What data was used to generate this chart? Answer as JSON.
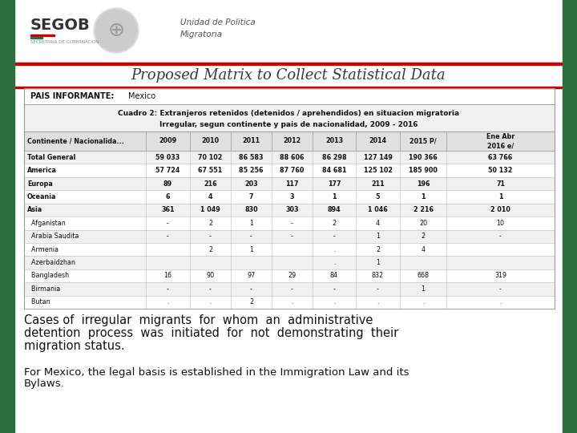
{
  "bg_color": "#ffffff",
  "green_bar_color": "#2d6e3e",
  "title_text": "Proposed Matrix to Collect Statistical Data",
  "red_line_color": "#cc0000",
  "segob_text": "SEGOB",
  "segob_sub": "SECRETARIA DE GOBERNACION",
  "unidad_line1": "Unidad de Politica",
  "unidad_line2": "Migratoria",
  "table_title_line1": "Cuadro 2: Extranjeros retenidos (detenidos / aprehendidos) en situacion migratoria",
  "table_title_line2": "Irregular, segun continente y pais de nacionalidad, 2009 - 2016",
  "pais_label": "PAIS INFORMANTE:",
  "pais_value": "Mexico",
  "col_headers": [
    "Continente / Nacionalida...",
    "2009",
    "2010",
    "2011",
    "2012",
    "2013",
    "2014",
    "2015 P/",
    "Ene Abr\n2016 e/"
  ],
  "rows": [
    [
      "Total General",
      "59 033",
      "70 102",
      "86 583",
      "88 606",
      "86 298",
      "127 149",
      "190 366",
      "63 766"
    ],
    [
      "America",
      "57 724",
      "67 551",
      "85 256",
      "87 760",
      "84 681",
      "125 102",
      "185 900",
      "50 132"
    ],
    [
      "Europa",
      "89",
      "216",
      "203",
      "117",
      "177",
      "211",
      "196",
      "71"
    ],
    [
      "Oceania",
      "6",
      "4",
      "7",
      "3",
      "1",
      "5",
      "1",
      "1"
    ],
    [
      "Asia",
      "361",
      "1 049",
      "830",
      "303",
      "894",
      "1 046",
      "2 216",
      "2 010"
    ],
    [
      "  Afganistan",
      "-",
      "2",
      "1",
      "-",
      "2",
      "4",
      "20",
      "10"
    ],
    [
      "  Arabia Saudita",
      "-",
      "-",
      "-",
      "-",
      "-",
      "1",
      "2",
      "-"
    ],
    [
      "  Armenia",
      "",
      "2",
      "1",
      "",
      ".",
      "2",
      "4",
      ""
    ],
    [
      "  Azerbaidzhan",
      "",
      "",
      "",
      "",
      ".",
      "1",
      "",
      ""
    ],
    [
      "  Bangladesh",
      "16",
      "90",
      "97",
      "29",
      "84",
      "832",
      "668",
      "319"
    ],
    [
      "  Birmania",
      "-",
      "-",
      "-",
      "-",
      "-",
      "-",
      "1",
      "-"
    ],
    [
      "  Butan",
      ".",
      ".",
      "2",
      ".",
      ".",
      ".",
      ".",
      "."
    ]
  ],
  "bold_rows": [
    0,
    1,
    2,
    3,
    4
  ],
  "body_text1_line1": "Cases of  irregular  migrants  for  whom  an  administrative",
  "body_text1_line2": "detention  process  was  initiated  for  not  demonstrating  their",
  "body_text1_line3": "migration status.",
  "body_text2_line1": "For Mexico, the legal basis is established in the Immigration Law and its",
  "body_text2_line2": "Bylaws."
}
